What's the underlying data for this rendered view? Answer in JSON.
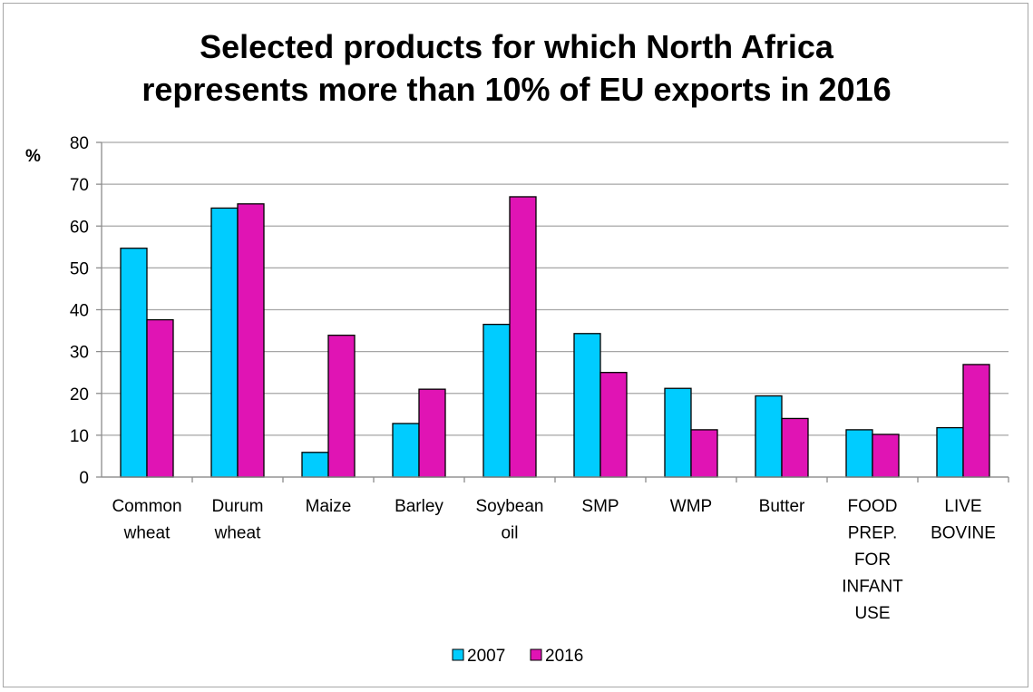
{
  "chart_data": {
    "type": "bar",
    "title_lines": [
      "Selected products for which North Africa",
      "represents more than 10% of EU exports in 2016"
    ],
    "ylabel": "%",
    "ylim": [
      0,
      80
    ],
    "yticks": [
      0,
      10,
      20,
      30,
      40,
      50,
      60,
      70,
      80
    ],
    "categories": [
      [
        "Common",
        "wheat"
      ],
      [
        "Durum",
        "wheat"
      ],
      [
        "Maize"
      ],
      [
        "Barley"
      ],
      [
        "Soybean",
        "oil"
      ],
      [
        "SMP"
      ],
      [
        "WMP"
      ],
      [
        "Butter"
      ],
      [
        "FOOD",
        "PREP.",
        "FOR",
        "INFANT",
        "USE"
      ],
      [
        "LIVE",
        "BOVINE"
      ]
    ],
    "series": [
      {
        "name": "2007",
        "color": "#00ccff",
        "values": [
          54.7,
          64.3,
          5.9,
          12.8,
          36.5,
          34.3,
          21.2,
          19.4,
          11.3,
          11.8
        ]
      },
      {
        "name": "2016",
        "color": "#e014b4",
        "values": [
          37.6,
          65.3,
          33.9,
          21.0,
          67.0,
          25.0,
          11.3,
          14.0,
          10.2,
          26.9
        ]
      }
    ],
    "grid": true,
    "legend_position": "bottom-center"
  }
}
